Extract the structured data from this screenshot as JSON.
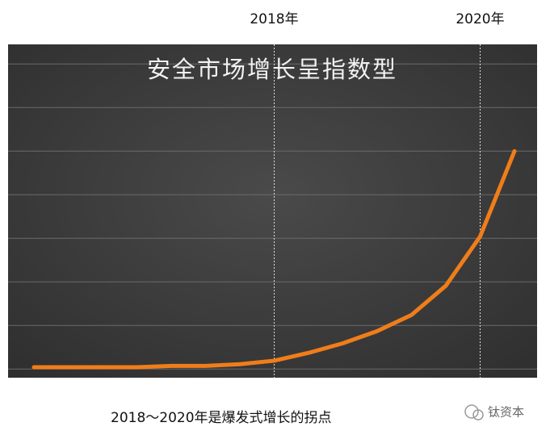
{
  "chart_data": {
    "type": "line",
    "title": "安全市场增长呈指数型",
    "caption": "2018～2020年是爆发式增长的拐点",
    "watermark": "钛资本",
    "categories": [
      null,
      null,
      null,
      null,
      null,
      null,
      null,
      "2018年",
      null,
      null,
      null,
      null,
      null,
      "2020年",
      null
    ],
    "values": [
      0.04,
      0.04,
      0.04,
      0.04,
      0.07,
      0.07,
      0.11,
      0.19,
      0.37,
      0.59,
      0.87,
      1.24,
      1.91,
      3.04,
      5.0
    ],
    "color": "#f07d1a",
    "ylim": [
      -0.2,
      7.45
    ],
    "yticks": [
      0,
      1,
      2,
      3,
      4,
      5,
      6,
      7
    ],
    "grid": true
  }
}
